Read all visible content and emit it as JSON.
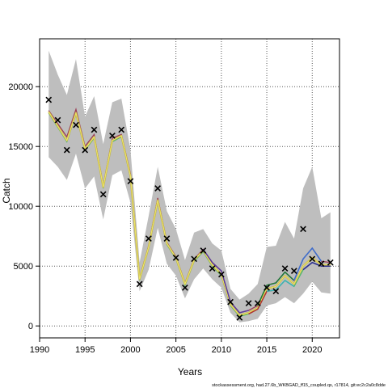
{
  "chart_data": {
    "type": "line",
    "xlabel": "Years",
    "ylabel": "Catch",
    "footer": "stockassessment.org, had.27.6b_WKBGAD_ff15_coupled.qs, r17814, git:ec2c2a0c8dde",
    "xlim": [
      1990,
      2023
    ],
    "ylim": [
      -1000,
      24000
    ],
    "x_ticks": [
      1990,
      1995,
      2000,
      2005,
      2010,
      2015,
      2020
    ],
    "y_ticks": [
      0,
      5000,
      10000,
      15000,
      20000
    ],
    "grid": true,
    "colors": {
      "band": "#bebebe",
      "main_line": "#c9b74a",
      "highlight": "#f2ef6e",
      "observed": "#000000"
    },
    "years": [
      1991,
      1992,
      1993,
      1994,
      1995,
      1996,
      1997,
      1998,
      1999,
      2000,
      2001,
      2002,
      2003,
      2004,
      2005,
      2006,
      2007,
      2008,
      2009,
      2010,
      2011,
      2012,
      2013,
      2014,
      2015,
      2016,
      2017,
      2018,
      2019,
      2020,
      2021,
      2022
    ],
    "series": [
      {
        "role": "estimate",
        "values": [
          17900,
          16700,
          15500,
          17800,
          14800,
          15800,
          11600,
          15500,
          15900,
          12500,
          3900,
          6600,
          10500,
          6900,
          5700,
          3500,
          5500,
          6300,
          5100,
          4300,
          1800,
          900,
          1100,
          1500,
          3100,
          3300,
          4200,
          3500,
          5000,
          5700,
          5100,
          5100
        ]
      },
      {
        "role": "estimate",
        "values": [
          18000,
          16900,
          15800,
          18100,
          15000,
          16000,
          11700,
          15700,
          16000,
          12700,
          4000,
          6700,
          10700,
          7000,
          5800,
          3600,
          5600,
          6400,
          5300,
          4600,
          2000,
          1100,
          1300,
          1700,
          3400,
          3600,
          4500,
          3800,
          5600,
          6500,
          5400,
          5300
        ]
      },
      {
        "role": "estimate",
        "values": [
          17800,
          16600,
          15400,
          17700,
          14700,
          15700,
          11500,
          15400,
          15800,
          12400,
          3800,
          6500,
          10400,
          6800,
          5600,
          3400,
          5400,
          6200,
          5000,
          4200,
          1700,
          800,
          1000,
          1400,
          2900,
          3000,
          3800,
          3300,
          4700,
          5300,
          5000,
          5000
        ]
      }
    ],
    "band_upper": [
      23000,
      21000,
      19300,
      22300,
      17500,
      19200,
      15200,
      18700,
      19000,
      14700,
      5300,
      9200,
      13300,
      9600,
      8100,
      5500,
      7800,
      8100,
      6900,
      6300,
      3100,
      2200,
      2700,
      3500,
      6600,
      6700,
      8700,
      7300,
      11500,
      13300,
      9000,
      9500
    ],
    "band_lower": [
      14100,
      13300,
      12200,
      14400,
      11500,
      12500,
      8900,
      12600,
      13000,
      10300,
      2900,
      4700,
      8200,
      5200,
      4200,
      2300,
      3900,
      4800,
      3900,
      3200,
      1100,
      300,
      400,
      600,
      1700,
      1900,
      2400,
      1900,
      2700,
      3700,
      2800,
      2700
    ],
    "observed": [
      {
        "x": 1991,
        "y": 18900
      },
      {
        "x": 1992,
        "y": 17200
      },
      {
        "x": 1993,
        "y": 14700
      },
      {
        "x": 1994,
        "y": 16800
      },
      {
        "x": 1995,
        "y": 14700
      },
      {
        "x": 1996,
        "y": 16400
      },
      {
        "x": 1997,
        "y": 11000
      },
      {
        "x": 1998,
        "y": 15900
      },
      {
        "x": 1999,
        "y": 16400
      },
      {
        "x": 2000,
        "y": 12100
      },
      {
        "x": 2001,
        "y": 3500
      },
      {
        "x": 2002,
        "y": 7300
      },
      {
        "x": 2003,
        "y": 11500
      },
      {
        "x": 2004,
        "y": 7300
      },
      {
        "x": 2005,
        "y": 5700
      },
      {
        "x": 2006,
        "y": 3200
      },
      {
        "x": 2007,
        "y": 5600
      },
      {
        "x": 2008,
        "y": 6300
      },
      {
        "x": 2009,
        "y": 4800
      },
      {
        "x": 2010,
        "y": 4300
      },
      {
        "x": 2011,
        "y": 2000
      },
      {
        "x": 2012,
        "y": 700
      },
      {
        "x": 2013,
        "y": 1900
      },
      {
        "x": 2014,
        "y": 1900
      },
      {
        "x": 2015,
        "y": 3200
      },
      {
        "x": 2016,
        "y": 2900
      },
      {
        "x": 2017,
        "y": 4800
      },
      {
        "x": 2018,
        "y": 4600
      },
      {
        "x": 2019,
        "y": 8100
      },
      {
        "x": 2020,
        "y": 5600
      },
      {
        "x": 2021,
        "y": 5200
      },
      {
        "x": 2022,
        "y": 5300
      }
    ]
  }
}
